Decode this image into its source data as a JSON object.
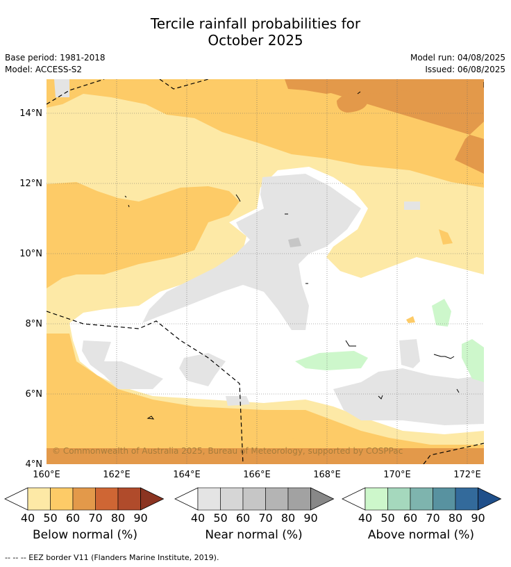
{
  "title_line1": "Tercile rainfall probabilities for",
  "title_line2": "October 2025",
  "base_period": "Base period: 1981-2018",
  "model": "Model: ACCESS-S2",
  "model_run": "Model run: 04/08/2025",
  "issued": "Issued: 06/08/2025",
  "credit": "© Commonwealth of Australia 2025, Bureau of Meteorology, supported by COSPPac",
  "lat_ticks": [
    "4°N",
    "6°N",
    "8°N",
    "10°N",
    "12°N",
    "14°N"
  ],
  "lon_ticks": [
    "160°E",
    "162°E",
    "164°E",
    "166°E",
    "168°E",
    "170°E",
    "172°E"
  ],
  "colorbars": [
    {
      "label": "Below normal (%)",
      "colors": [
        "#fde9a6",
        "#fdcb67",
        "#e3994a",
        "#cf6634",
        "#b04b2b",
        "#8b3421"
      ]
    },
    {
      "label": "Near normal (%)",
      "colors": [
        "#e4e4e4",
        "#d6d6d6",
        "#c6c6c6",
        "#b4b4b4",
        "#a2a2a2",
        "#888888"
      ]
    },
    {
      "label": "Above normal (%)",
      "colors": [
        "#cdf7cb",
        "#a5d8bd",
        "#7eb4ae",
        "#5892a0",
        "#336a9b",
        "#1f4f8a"
      ]
    }
  ],
  "colorbar_ticks": [
    "40",
    "50",
    "60",
    "70",
    "80",
    "90"
  ],
  "footnote": "--  --  -- EEZ border V11 (Flanders Marine Institute, 2019)."
}
